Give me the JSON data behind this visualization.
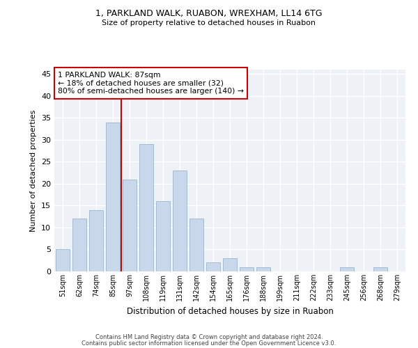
{
  "title1": "1, PARKLAND WALK, RUABON, WREXHAM, LL14 6TG",
  "title2": "Size of property relative to detached houses in Ruabon",
  "xlabel": "Distribution of detached houses by size in Ruabon",
  "ylabel": "Number of detached properties",
  "categories": [
    "51sqm",
    "62sqm",
    "74sqm",
    "85sqm",
    "97sqm",
    "108sqm",
    "119sqm",
    "131sqm",
    "142sqm",
    "154sqm",
    "165sqm",
    "176sqm",
    "188sqm",
    "199sqm",
    "211sqm",
    "222sqm",
    "233sqm",
    "245sqm",
    "256sqm",
    "268sqm",
    "279sqm"
  ],
  "values": [
    5,
    12,
    14,
    34,
    21,
    29,
    16,
    23,
    12,
    2,
    3,
    1,
    1,
    0,
    0,
    0,
    0,
    1,
    0,
    1,
    0
  ],
  "bar_color": "#c8d8ea",
  "bar_edge_color": "#9ab4cc",
  "vline_x": 3.5,
  "annotation_text": "1 PARKLAND WALK: 87sqm\n← 18% of detached houses are smaller (32)\n80% of semi-detached houses are larger (140) →",
  "annotation_box_color": "#ffffff",
  "annotation_box_edge": "#cc0000",
  "vline_color": "#cc0000",
  "ylim": [
    0,
    46
  ],
  "yticks": [
    0,
    5,
    10,
    15,
    20,
    25,
    30,
    35,
    40,
    45
  ],
  "footer1": "Contains HM Land Registry data © Crown copyright and database right 2024.",
  "footer2": "Contains public sector information licensed under the Open Government Licence v3.0.",
  "bg_color": "#eef2f7"
}
